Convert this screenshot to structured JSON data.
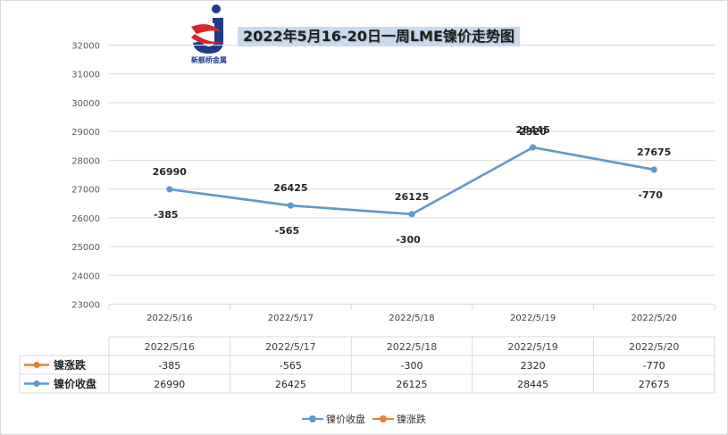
{
  "title": "2022年5月16-20日一周LME镍价走势图",
  "logo_text": "新舰桥金属",
  "colors": {
    "close": "#5b9bd5",
    "change": "#ed7d31"
  },
  "chart_data": {
    "type": "line",
    "title": "2022年5月16-20日一周LME镍价走势图",
    "categories": [
      "2022/5/16",
      "2022/5/17",
      "2022/5/18",
      "2022/5/19",
      "2022/5/20"
    ],
    "yticks": [
      "32000",
      "31000",
      "30000",
      "29000",
      "28000",
      "27000",
      "26000",
      "25000",
      "24000",
      "23000"
    ],
    "ylim": [
      23000,
      32000
    ],
    "grid": true,
    "legend_position": "bottom",
    "series": [
      {
        "name": "镍价收盘",
        "values": [
          26990,
          26425,
          26125,
          28445,
          27675
        ],
        "labels": [
          "26990",
          "26425",
          "26125",
          "28445",
          "27675"
        ]
      },
      {
        "name": "镍涨跌",
        "values": [
          -385,
          -565,
          -300,
          2320,
          -770
        ],
        "labels": [
          "-385",
          "-565",
          "-300",
          "2320",
          "-770"
        ]
      }
    ],
    "table": {
      "header": [
        "2022/5/16",
        "2022/5/17",
        "2022/5/18",
        "2022/5/19",
        "2022/5/20"
      ],
      "rows": [
        {
          "name": "镍涨跌",
          "values": [
            "-385",
            "-565",
            "-300",
            "2320",
            "-770"
          ]
        },
        {
          "name": "镍价收盘",
          "values": [
            "26990",
            "26425",
            "26125",
            "28445",
            "27675"
          ]
        }
      ]
    },
    "legend": [
      "镍价收盘",
      "镍涨跌"
    ]
  }
}
